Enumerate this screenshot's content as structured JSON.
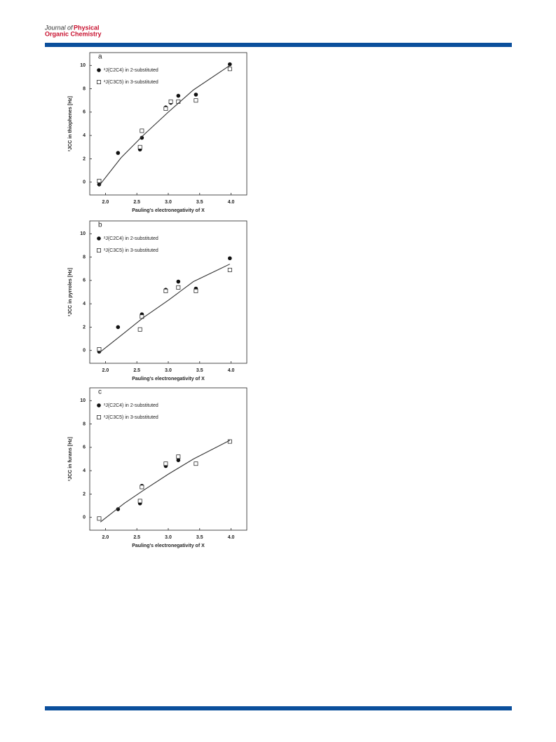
{
  "header": {
    "lines": [
      "Journal of",
      "Physical",
      "Organic Chemistry"
    ]
  },
  "chart_data": [
    {
      "type": "scatter",
      "panel_label": "a",
      "ylabel": "²JCC in thiophenes [Hz]",
      "xlabel": "Pauling's electronegativity of X",
      "xlim": [
        1.75,
        4.25
      ],
      "ylim": [
        -1.1,
        11.1
      ],
      "xticks": [
        {
          "value": 2,
          "label": "2.0"
        },
        2.5,
        {
          "value": 3,
          "label": "3.0"
        },
        3.5,
        {
          "value": 4,
          "label": "4.0"
        }
      ],
      "yticks": [
        0,
        2,
        4,
        6,
        8,
        10
      ],
      "legend": "upper left",
      "series": [
        {
          "name": "²J(C2C4) in 2-substituted",
          "color": "#111111",
          "marker": "filled",
          "x": [
            1.9,
            2.2,
            2.55,
            2.58,
            2.96,
            3.04,
            3.16,
            3.44,
            3.98
          ],
          "values": [
            -0.2,
            2.5,
            2.8,
            3.8,
            6.4,
            6.8,
            7.4,
            7.5,
            10.1
          ]
        },
        {
          "name": "²J(C3C5) in 3-substituted",
          "color": "#111111",
          "marker": "open",
          "x": [
            1.9,
            2.55,
            2.58,
            2.96,
            3.04,
            3.16,
            3.44,
            3.98
          ],
          "values": [
            0.1,
            3.0,
            4.4,
            6.3,
            6.9,
            6.9,
            7.0,
            9.7
          ]
        },
        {
          "type": "line",
          "color": "#333333",
          "x": [
            1.9,
            2.25,
            2.6,
            3.0,
            3.4,
            3.98
          ],
          "values": [
            -0.3,
            2.1,
            4.0,
            6.0,
            7.9,
            10.0
          ]
        }
      ]
    },
    {
      "type": "scatter",
      "panel_label": "b",
      "ylabel": "²JCC in pyrroles [Hz]",
      "xlabel": "Pauling's electronegativity of X",
      "xlim": [
        1.75,
        4.25
      ],
      "ylim": [
        -1.1,
        11.1
      ],
      "xticks": [
        {
          "value": 2,
          "label": "2.0"
        },
        2.5,
        {
          "value": 3,
          "label": "3.0"
        },
        3.5,
        {
          "value": 4,
          "label": "4.0"
        }
      ],
      "yticks": [
        0,
        2,
        4,
        6,
        8,
        10
      ],
      "legend": "upper left",
      "series": [
        {
          "name": "²J(C2C4) in 2-substituted",
          "color": "#111111",
          "marker": "filled",
          "x": [
            1.9,
            2.2,
            2.58,
            2.96,
            3.16,
            3.44,
            3.98
          ],
          "values": [
            -0.1,
            2.0,
            3.1,
            5.2,
            5.9,
            5.3,
            7.9
          ]
        },
        {
          "name": "²J(C3C5) in 3-substituted",
          "color": "#111111",
          "marker": "open",
          "x": [
            1.9,
            2.55,
            2.58,
            2.96,
            3.16,
            3.44,
            3.98
          ],
          "values": [
            0.1,
            1.8,
            2.9,
            5.1,
            5.4,
            5.1,
            6.9
          ]
        },
        {
          "type": "line",
          "color": "#333333",
          "x": [
            1.9,
            2.3,
            2.6,
            3.0,
            3.4,
            3.98
          ],
          "values": [
            -0.2,
            1.5,
            2.8,
            4.3,
            5.9,
            7.4
          ]
        }
      ]
    },
    {
      "type": "scatter",
      "panel_label": "c",
      "ylabel": "²JCC in furans [Hz]",
      "xlabel": "Pauling's electronegativity of X",
      "xlim": [
        1.75,
        4.25
      ],
      "ylim": [
        -1.1,
        11.1
      ],
      "xticks": [
        {
          "value": 2,
          "label": "2.0"
        },
        2.5,
        {
          "value": 3,
          "label": "3.0"
        },
        3.5,
        {
          "value": 4,
          "label": "4.0"
        }
      ],
      "yticks": [
        0,
        2,
        4,
        6,
        8,
        10
      ],
      "legend": "upper left",
      "series": [
        {
          "name": "²J(C2C4) in 2-substituted",
          "color": "#111111",
          "marker": "filled",
          "x": [
            2.2,
            2.55,
            2.58,
            2.96,
            3.16,
            3.98
          ],
          "values": [
            0.7,
            1.2,
            2.7,
            4.4,
            4.9,
            6.5
          ]
        },
        {
          "name": "²J(C3C5) in 3-substituted",
          "color": "#111111",
          "marker": "open",
          "x": [
            1.9,
            2.55,
            2.58,
            2.96,
            3.16,
            3.44,
            3.98
          ],
          "values": [
            -0.1,
            1.4,
            2.6,
            4.6,
            5.2,
            4.6,
            6.5
          ]
        },
        {
          "type": "line",
          "color": "#333333",
          "x": [
            1.92,
            2.3,
            2.6,
            3.0,
            3.4,
            3.98
          ],
          "values": [
            -0.4,
            1.2,
            2.3,
            3.7,
            5.0,
            6.6
          ]
        }
      ]
    }
  ]
}
